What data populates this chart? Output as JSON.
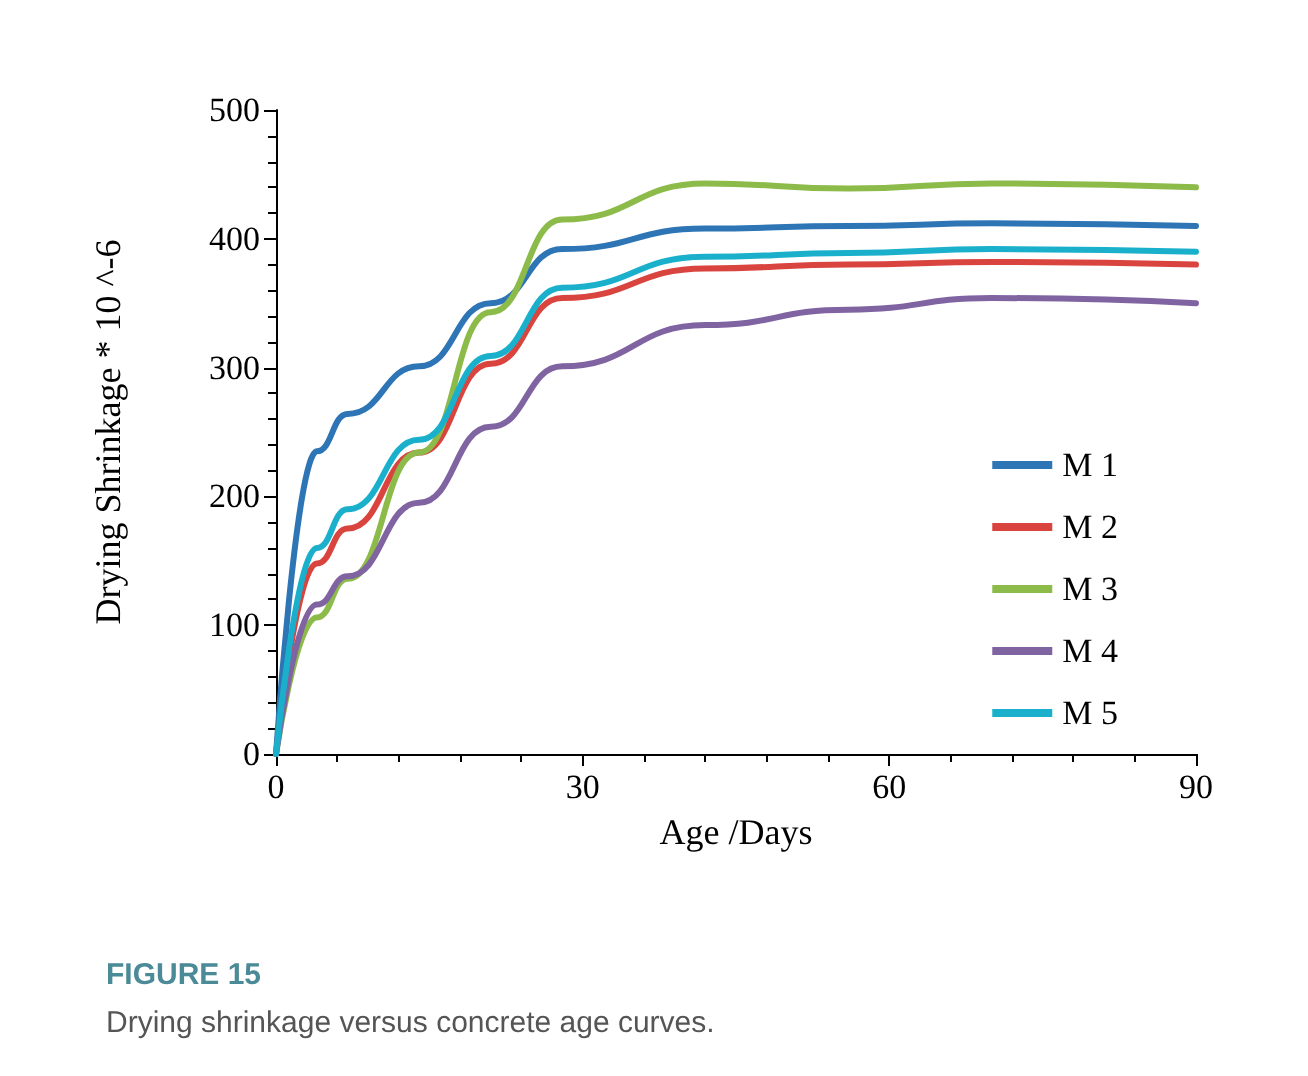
{
  "chart_data": {
    "type": "line",
    "xlabel": "Age /Days",
    "ylabel": "Drying Shrinkage * 10 ^-6",
    "annotations": [
      "FIGURE 15",
      "Drying shrinkage versus concrete age curves."
    ],
    "x": [
      0,
      4,
      7,
      14,
      21,
      28,
      42,
      56,
      70,
      90
    ],
    "series": [
      {
        "name": "M 1",
        "color": "#2e75b6",
        "values": [
          0,
          235,
          264,
          301,
          350,
          392,
          408,
          410,
          412,
          410
        ]
      },
      {
        "name": "M 2",
        "color": "#d9443f",
        "values": [
          0,
          148,
          175,
          234,
          303,
          354,
          377,
          380,
          382,
          380
        ]
      },
      {
        "name": "M 3",
        "color": "#8cbb4a",
        "values": [
          0,
          106,
          136,
          234,
          343,
          415,
          443,
          439,
          443,
          440
        ]
      },
      {
        "name": "M 4",
        "color": "#8064a2",
        "values": [
          0,
          116,
          138,
          195,
          254,
          301,
          333,
          345,
          354,
          350
        ]
      },
      {
        "name": "M 5",
        "color": "#1ab0cc",
        "values": [
          0,
          160,
          190,
          244,
          309,
          362,
          386,
          389,
          392,
          390
        ]
      }
    ],
    "xlim": [
      0,
      90
    ],
    "xticks": [
      0,
      30,
      60,
      90
    ],
    "ylim": [
      0,
      500
    ],
    "yticks": [
      0,
      100,
      200,
      300,
      400,
      500
    ],
    "grid": false,
    "legend": "bottom right",
    "marker": "none",
    "line_style": "solid"
  }
}
